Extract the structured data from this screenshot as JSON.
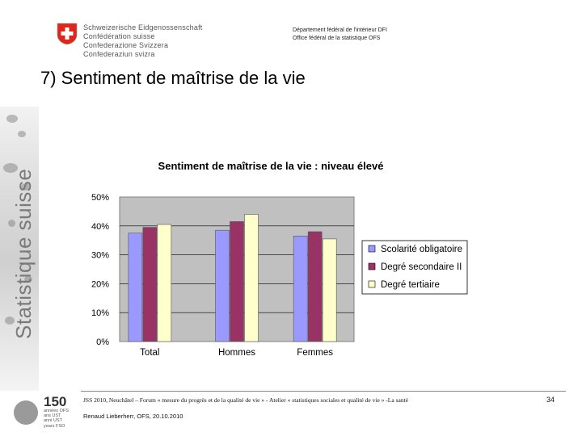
{
  "header": {
    "confederation_lines": [
      "Schweizerische Eidgenossenschaft",
      "Confédération suisse",
      "Confederazione Svizzera",
      "Confederaziun svizra"
    ],
    "department_lines": [
      "Département fédéral de l'intérieur DFI",
      "Office fédéral de la statistique OFS"
    ],
    "logo_icon": "swiss-cross-icon",
    "logo_color": "#e1251b"
  },
  "slide": {
    "title": "7) Sentiment de maîtrise de la vie",
    "side_text": "Statistique suisse"
  },
  "chart_data": {
    "type": "bar",
    "title": "Sentiment de maîtrise de la vie : niveau élevé",
    "categories": [
      "Total",
      "Hommes",
      "Femmes"
    ],
    "series": [
      {
        "name": "Scolarité obligatoire",
        "values": [
          37.5,
          38.5,
          36.5
        ],
        "color": "#9999ff"
      },
      {
        "name": "Degré secondaire II",
        "values": [
          39.5,
          41.5,
          38
        ],
        "color": "#993366"
      },
      {
        "name": "Degré tertiaire",
        "values": [
          40.5,
          44,
          35.5
        ],
        "color": "#ffffcc"
      }
    ],
    "yticks": [
      "0%",
      "10%",
      "20%",
      "30%",
      "40%",
      "50%"
    ],
    "ylim": [
      0,
      50
    ],
    "xlabel": "",
    "ylabel": "",
    "legend_position": "right",
    "grid": true,
    "plot_background": "#c0c0c0"
  },
  "footer": {
    "anniversary_number": "150",
    "anniversary_lines": [
      "années OFS",
      "ans UST",
      "anni UST",
      "years FSO"
    ],
    "line1": "JSS 2010, Neuchâtel – Forum « mesure du progrès et de la qualité de vie » - Atelier « statistiques sociales et qualité de vie » -La santé",
    "line2": "Renaud Lieberherr, OFS, 20.10.2010",
    "page_number": "34"
  }
}
